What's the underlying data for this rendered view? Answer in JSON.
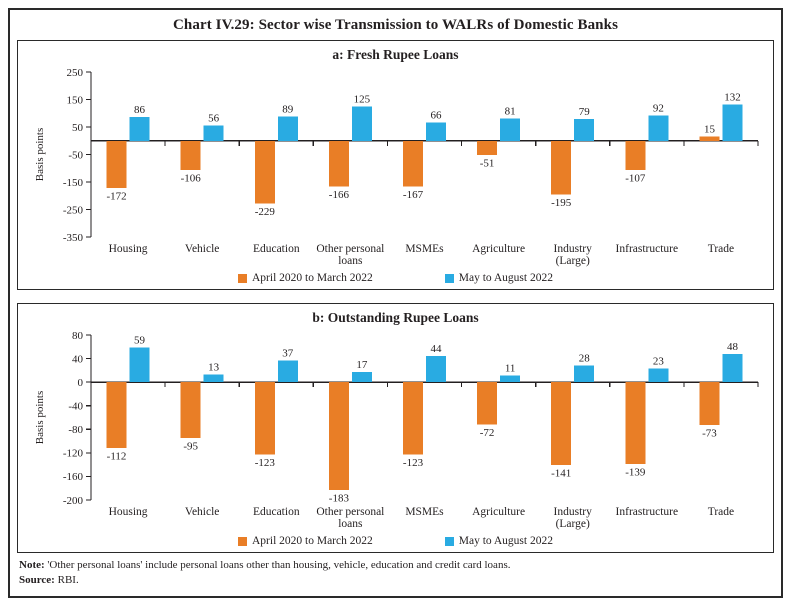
{
  "page": {
    "title": "Chart IV.29: Sector wise Transmission to WALRs of Domestic Banks"
  },
  "colors": {
    "series1": "#E97E26",
    "series2": "#29ABE2",
    "axis": "#231f20"
  },
  "legend": {
    "items": [
      {
        "label": "April 2020 to March 2022",
        "color": "#E97E26"
      },
      {
        "label": "May to August 2022",
        "color": "#29ABE2"
      }
    ]
  },
  "notes": {
    "note_label": "Note:",
    "note_body": "'Other personal loans' include personal loans other than housing, vehicle, education and credit card loans.",
    "source_label": "Source:",
    "source_body": "RBI."
  },
  "chart_data": [
    {
      "type": "bar",
      "title": "a: Fresh Rupee Loans",
      "ylabel": "Basis points",
      "ylim": [
        -350,
        250
      ],
      "yticks": [
        250,
        150,
        50,
        -50,
        -150,
        -250,
        -350
      ],
      "grid": false,
      "legend_position": "bottom",
      "categories": [
        "Housing",
        "Vehicle",
        "Education",
        "Other personal\nloans",
        "MSMEs",
        "Agriculture",
        "Industry\n(Large)",
        "Infrastructure",
        "Trade"
      ],
      "series": [
        {
          "name": "April 2020 to March 2022",
          "color": "#E97E26",
          "values": [
            -172,
            -106,
            -229,
            -166,
            -167,
            -51,
            -195,
            -107,
            15
          ]
        },
        {
          "name": "May to August 2022",
          "color": "#29ABE2",
          "values": [
            86,
            56,
            89,
            125,
            66,
            81,
            79,
            92,
            132
          ]
        }
      ]
    },
    {
      "type": "bar",
      "title": "b: Outstanding Rupee Loans",
      "ylabel": "Basis points",
      "ylim": [
        -200,
        80
      ],
      "yticks": [
        80,
        40,
        0,
        -40,
        -80,
        -120,
        -160,
        -200
      ],
      "grid": false,
      "legend_position": "bottom",
      "categories": [
        "Housing",
        "Vehicle",
        "Education",
        "Other personal\nloans",
        "MSMEs",
        "Agriculture",
        "Industry\n(Large)",
        "Infrastructure",
        "Trade"
      ],
      "series": [
        {
          "name": "April 2020 to March 2022",
          "color": "#E97E26",
          "values": [
            -112,
            -95,
            -123,
            -183,
            -123,
            -72,
            -141,
            -139,
            -73
          ]
        },
        {
          "name": "May to August 2022",
          "color": "#29ABE2",
          "values": [
            59,
            13,
            37,
            17,
            44,
            11,
            28,
            23,
            48
          ]
        }
      ]
    }
  ]
}
